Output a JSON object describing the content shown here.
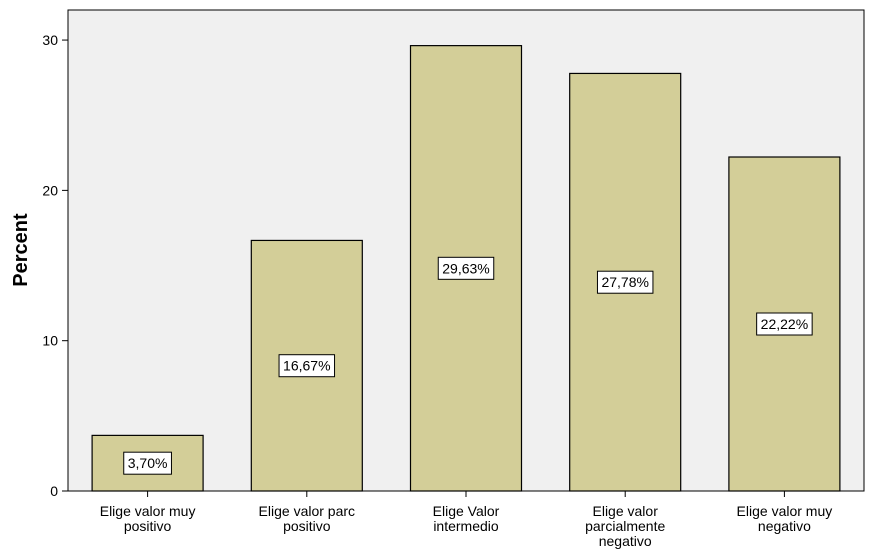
{
  "chart_data": {
    "type": "bar",
    "title": "",
    "xlabel": "",
    "ylabel": "Percent",
    "ylim": [
      0,
      32
    ],
    "yticks": [
      0,
      10,
      20,
      30
    ],
    "grid": false,
    "categories": [
      [
        "Elige valor muy",
        "positivo"
      ],
      [
        "Elige valor parc",
        "positivo"
      ],
      [
        "Elige Valor",
        "intermedio"
      ],
      [
        "Elige valor",
        "parcialmente",
        "negativo"
      ],
      [
        "Elige valor muy",
        "negativo"
      ]
    ],
    "values": [
      3.7,
      16.67,
      29.63,
      27.78,
      22.22
    ],
    "data_labels": [
      "3,70%",
      "16,67%",
      "29,63%",
      "27,78%",
      "22,22%"
    ],
    "colors": {
      "bar": "#d3ce98",
      "bar_stroke": "#000000",
      "plot_background": "#f0f0f0",
      "label_box": "#ffffff"
    }
  }
}
